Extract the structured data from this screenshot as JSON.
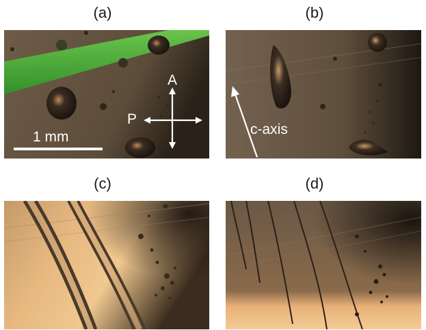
{
  "figure": {
    "panels": [
      {
        "label": "(a)"
      },
      {
        "label": "(b)"
      },
      {
        "label": "(c)"
      },
      {
        "label": "(d)"
      }
    ],
    "annotations": {
      "scale_bar": "1 mm",
      "analyzer": "A",
      "polarizer": "P",
      "c_axis": "c-axis"
    },
    "colors": {
      "dark_background": "#5a4a38",
      "bright_background": "#e8b878",
      "green_stripe": "#3fa832",
      "annotation": "#ffffff"
    }
  }
}
